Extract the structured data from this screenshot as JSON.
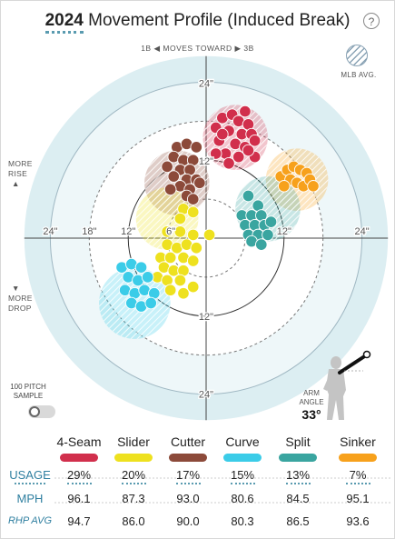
{
  "title": {
    "year": "2024",
    "text": "Movement Profile (Induced Break)"
  },
  "help_label": "?",
  "legend": {
    "mlb_avg": "MLB AVG."
  },
  "direction": {
    "left": "1B",
    "middle": "MOVES TOWARD",
    "right": "3B"
  },
  "side_labels": {
    "rise_line1": "MORE",
    "rise_line2": "RISE",
    "drop_line1": "MORE",
    "drop_line2": "DROP"
  },
  "sample": {
    "line1": "100 PITCH",
    "line2": "SAMPLE"
  },
  "arm_angle": {
    "label_line1": "ARM",
    "label_line2": "ANGLE",
    "value": "33°"
  },
  "colors": {
    "4-Seam": "#d12f4c",
    "Slider": "#eee11f",
    "Cutter": "#8c4a3a",
    "Curve": "#3bcce8",
    "Split": "#3aa5a0",
    "Sinker": "#f7a11c",
    "accent": "#2f7fa0",
    "background_circle": "#dceef2"
  },
  "chart_data": {
    "type": "scatter",
    "xlabel": "",
    "ylabel": "",
    "xlim": [
      -28,
      28
    ],
    "ylim": [
      -28,
      28
    ],
    "ring_labels": [
      "6\"",
      "12\"",
      "18\"",
      "24\""
    ],
    "axis_labels": {
      "top_24": "24\"",
      "top_12": "12\"",
      "bottom_12": "12\"",
      "bottom_24": "24\"",
      "left_24": "24\"",
      "left_18": "18\"",
      "left_12": "12\"",
      "left_6": "6\"",
      "right_12": "12\"",
      "right_24": "24\""
    },
    "mlb_avg": [
      {
        "pitch": "4-Seam",
        "x": 4.5,
        "y": 15.5,
        "r": 5
      },
      {
        "pitch": "Sinker",
        "x": 14,
        "y": 9,
        "r": 4.8
      },
      {
        "pitch": "Cutter",
        "x": -4.5,
        "y": 8.5,
        "r": 5
      },
      {
        "pitch": "Slider",
        "x": -6,
        "y": 3,
        "r": 4.8
      },
      {
        "pitch": "Split",
        "x": 9.5,
        "y": 4.5,
        "r": 5
      },
      {
        "pitch": "Curve",
        "x": -11,
        "y": -10,
        "r": 5.5
      }
    ],
    "series": [
      {
        "name": "4-Seam",
        "points": [
          [
            1.5,
            17
          ],
          [
            2.5,
            18.5
          ],
          [
            4,
            19
          ],
          [
            5,
            18
          ],
          [
            6,
            19.5
          ],
          [
            3.5,
            16.5
          ],
          [
            5.5,
            16
          ],
          [
            6.5,
            17.5
          ],
          [
            7,
            16
          ],
          [
            2,
            15
          ],
          [
            4.5,
            14.5
          ],
          [
            6,
            14
          ],
          [
            7.5,
            15
          ],
          [
            3,
            13
          ],
          [
            5,
            12.5
          ],
          [
            1.5,
            13
          ],
          [
            7.5,
            12.5
          ],
          [
            3.5,
            11.5
          ],
          [
            6.5,
            13.5
          ],
          [
            2.5,
            16
          ]
        ]
      },
      {
        "name": "Sinker",
        "points": [
          [
            11.5,
            9.5
          ],
          [
            12.5,
            10.5
          ],
          [
            13.5,
            11
          ],
          [
            14.5,
            10.5
          ],
          [
            15.5,
            10
          ],
          [
            13,
            9
          ],
          [
            14,
            8.5
          ],
          [
            15,
            8
          ],
          [
            12,
            8
          ],
          [
            16,
            9
          ],
          [
            16.5,
            8
          ]
        ]
      },
      {
        "name": "Cutter",
        "points": [
          [
            -4.5,
            14
          ],
          [
            -3,
            14.5
          ],
          [
            -1.5,
            14
          ],
          [
            -5,
            12.5
          ],
          [
            -3.5,
            12
          ],
          [
            -2,
            12
          ],
          [
            -6,
            11
          ],
          [
            -4,
            10.5
          ],
          [
            -2.5,
            10.5
          ],
          [
            -5,
            9.5
          ],
          [
            -3,
            9
          ],
          [
            -1.5,
            9
          ],
          [
            -4,
            8
          ],
          [
            -2.5,
            7.5
          ],
          [
            -1,
            8.5
          ],
          [
            -5.5,
            7.5
          ],
          [
            -3,
            6.5
          ],
          [
            -2,
            6
          ]
        ]
      },
      {
        "name": "Slider",
        "points": [
          [
            -3.5,
            4.5
          ],
          [
            -2,
            4
          ],
          [
            -4,
            3
          ],
          [
            -6,
            1
          ],
          [
            -4,
            1
          ],
          [
            -2,
            0.5
          ],
          [
            0.5,
            0.5
          ],
          [
            -6,
            -1
          ],
          [
            -4.5,
            -1.5
          ],
          [
            -3,
            -1
          ],
          [
            -1.5,
            -1.5
          ],
          [
            -7,
            -3
          ],
          [
            -5.5,
            -3
          ],
          [
            -3.5,
            -3
          ],
          [
            -2,
            -3.5
          ],
          [
            -6.5,
            -4.5
          ],
          [
            -5,
            -5
          ],
          [
            -3.5,
            -5
          ],
          [
            -7.5,
            -6
          ],
          [
            -6,
            -6.5
          ],
          [
            -4,
            -6.5
          ],
          [
            -5.5,
            -8
          ],
          [
            -3.5,
            -8.5
          ],
          [
            -2,
            -7.5
          ]
        ]
      },
      {
        "name": "Curve",
        "points": [
          [
            -13,
            -4.5
          ],
          [
            -11.5,
            -4
          ],
          [
            -10,
            -4.5
          ],
          [
            -12,
            -6
          ],
          [
            -10.5,
            -6.5
          ],
          [
            -9,
            -6
          ],
          [
            -12.5,
            -8
          ],
          [
            -11,
            -8.5
          ],
          [
            -9.5,
            -8
          ],
          [
            -8,
            -8.5
          ],
          [
            -11.5,
            -10
          ],
          [
            -10,
            -10.5
          ],
          [
            -8.5,
            -10
          ]
        ]
      },
      {
        "name": "Split",
        "points": [
          [
            6.5,
            6.5
          ],
          [
            8,
            5
          ],
          [
            5.5,
            3.5
          ],
          [
            7,
            3.5
          ],
          [
            8.5,
            3.5
          ],
          [
            6,
            2
          ],
          [
            7.5,
            2
          ],
          [
            9,
            2
          ],
          [
            10,
            2.5
          ],
          [
            6.5,
            0.5
          ],
          [
            8,
            0.5
          ],
          [
            9.5,
            0.5
          ],
          [
            7,
            -0.5
          ],
          [
            8.5,
            -1
          ]
        ]
      }
    ]
  },
  "table": {
    "pitches": [
      "4-Seam",
      "Slider",
      "Cutter",
      "Curve",
      "Split",
      "Sinker"
    ],
    "rows": [
      {
        "label": "USAGE",
        "values": [
          "29%",
          "20%",
          "17%",
          "15%",
          "13%",
          "7%"
        ]
      },
      {
        "label": "MPH",
        "values": [
          "96.1",
          "87.3",
          "93.0",
          "80.6",
          "84.5",
          "95.1"
        ]
      },
      {
        "label": "RHP AVG",
        "values": [
          "94.7",
          "86.0",
          "90.0",
          "80.3",
          "86.5",
          "93.6"
        ]
      }
    ]
  }
}
